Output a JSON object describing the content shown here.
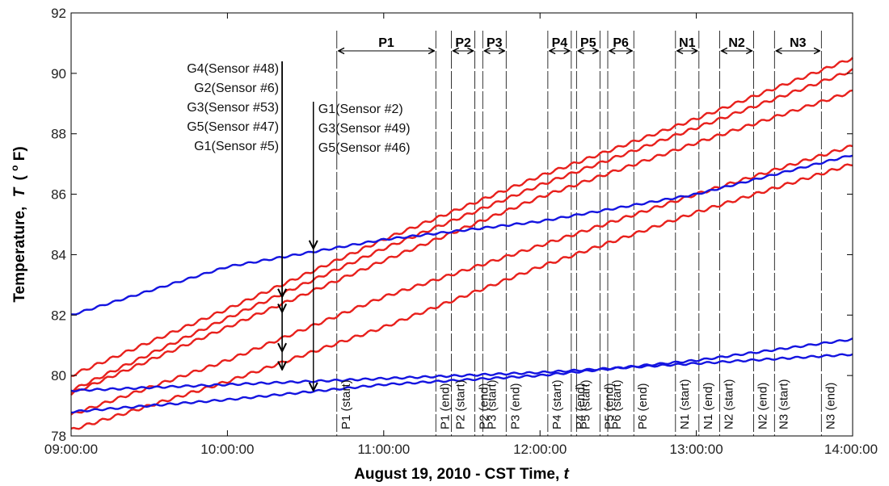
{
  "chart_data": {
    "type": "line",
    "xlabel": "August 19, 2010 - CST Time,",
    "xlabel_var": "t",
    "ylabel": "Temperature,",
    "ylabel_var": "T",
    "ylabel_unit_pre": "(",
    "ylabel_unit_sup": "o",
    "ylabel_unit_post": "F)",
    "xlim": [
      "09:00:00",
      "14:00:00"
    ],
    "ylim": [
      78,
      92
    ],
    "x_ticks": [
      "09:00:00",
      "10:00:00",
      "11:00:00",
      "12:00:00",
      "13:00:00",
      "14:00:00"
    ],
    "y_ticks": [
      78,
      80,
      82,
      84,
      86,
      88,
      90,
      92
    ],
    "grid": false,
    "series": [
      {
        "color": "#e8201c",
        "x": [
          "09:00",
          "10:00",
          "11:00",
          "12:00",
          "13:00",
          "14:00"
        ],
        "values": [
          80.0,
          82.2,
          84.5,
          86.6,
          88.5,
          90.5
        ]
      },
      {
        "color": "#e8201c",
        "x": [
          "09:00",
          "10:00",
          "11:00",
          "12:00",
          "13:00",
          "14:00"
        ],
        "values": [
          79.5,
          81.9,
          84.2,
          86.3,
          88.2,
          90.1
        ]
      },
      {
        "color": "#e8201c",
        "x": [
          "09:00",
          "10:00",
          "11:00",
          "12:00",
          "13:00",
          "14:00"
        ],
        "values": [
          79.4,
          81.6,
          83.8,
          85.9,
          87.7,
          89.4
        ]
      },
      {
        "color": "#e8201c",
        "x": [
          "09:00",
          "10:00",
          "11:00",
          "12:00",
          "13:00",
          "14:00"
        ],
        "values": [
          78.7,
          80.5,
          82.6,
          84.3,
          86.0,
          87.6
        ]
      },
      {
        "color": "#e8201c",
        "x": [
          "09:00",
          "10:00",
          "11:00",
          "12:00",
          "13:00",
          "14:00"
        ],
        "values": [
          78.2,
          79.8,
          81.6,
          83.6,
          85.4,
          87.0
        ]
      },
      {
        "color": "#1414e0",
        "x": [
          "09:00",
          "10:00",
          "11:00",
          "12:00",
          "13:00",
          "14:00"
        ],
        "values": [
          82.0,
          83.6,
          84.5,
          85.1,
          86.0,
          87.3
        ]
      },
      {
        "color": "#1414e0",
        "x": [
          "09:00",
          "10:00",
          "11:00",
          "12:00",
          "13:00",
          "14:00"
        ],
        "values": [
          79.5,
          79.7,
          79.9,
          80.1,
          80.4,
          80.7
        ]
      },
      {
        "color": "#1414e0",
        "x": [
          "09:00",
          "10:00",
          "11:00",
          "12:00",
          "13:00",
          "14:00"
        ],
        "values": [
          78.8,
          79.2,
          79.7,
          80.0,
          80.5,
          81.2
        ]
      }
    ],
    "annotations": {
      "arrow_group_left": {
        "x": "10:21",
        "labels": [
          "G4(Sensor #48)",
          "G2(Sensor #6)",
          "G3(Sensor #53)",
          "G5(Sensor #47)",
          "G1(Sensor #5)"
        ],
        "targets": [
          82.6,
          82.1,
          80.8,
          80.2
        ]
      },
      "arrow_group_right": {
        "x": "10:33",
        "labels": [
          "G1(Sensor #2)",
          "G3(Sensor #49)",
          "G5(Sensor #46)"
        ],
        "targets": [
          84.2,
          79.5
        ]
      }
    },
    "periods": [
      {
        "name": "P1",
        "start": "10:42",
        "end": "11:20",
        "start_label": "P1 (start)",
        "end_label": "P1 (end)"
      },
      {
        "name": "P2",
        "start": "11:26",
        "end": "11:35",
        "start_label": "P2 (start)",
        "end_label": "P2 (end)"
      },
      {
        "name": "P3",
        "start": "11:38",
        "end": "11:47",
        "start_label": "P3 (start)",
        "end_label": "P3 (end)"
      },
      {
        "name": "P4",
        "start": "12:03",
        "end": "12:12",
        "start_label": "P4 (start)",
        "end_label": "P4 (end)"
      },
      {
        "name": "P5",
        "start": "12:14",
        "end": "12:23",
        "start_label": "P5 (start)",
        "end_label": "P5 (end)"
      },
      {
        "name": "P6",
        "start": "12:26",
        "end": "12:36",
        "start_label": "P6 (start)",
        "end_label": "P6 (end)"
      },
      {
        "name": "N1",
        "start": "12:52",
        "end": "13:01",
        "start_label": "N1 (start)",
        "end_label": "N1 (end)"
      },
      {
        "name": "N2",
        "start": "13:09",
        "end": "13:22",
        "start_label": "N2 (start)",
        "end_label": "N2 (end)"
      },
      {
        "name": "N3",
        "start": "13:30",
        "end": "13:48",
        "start_label": "N3 (start)",
        "end_label": "N3 (end)"
      }
    ]
  }
}
